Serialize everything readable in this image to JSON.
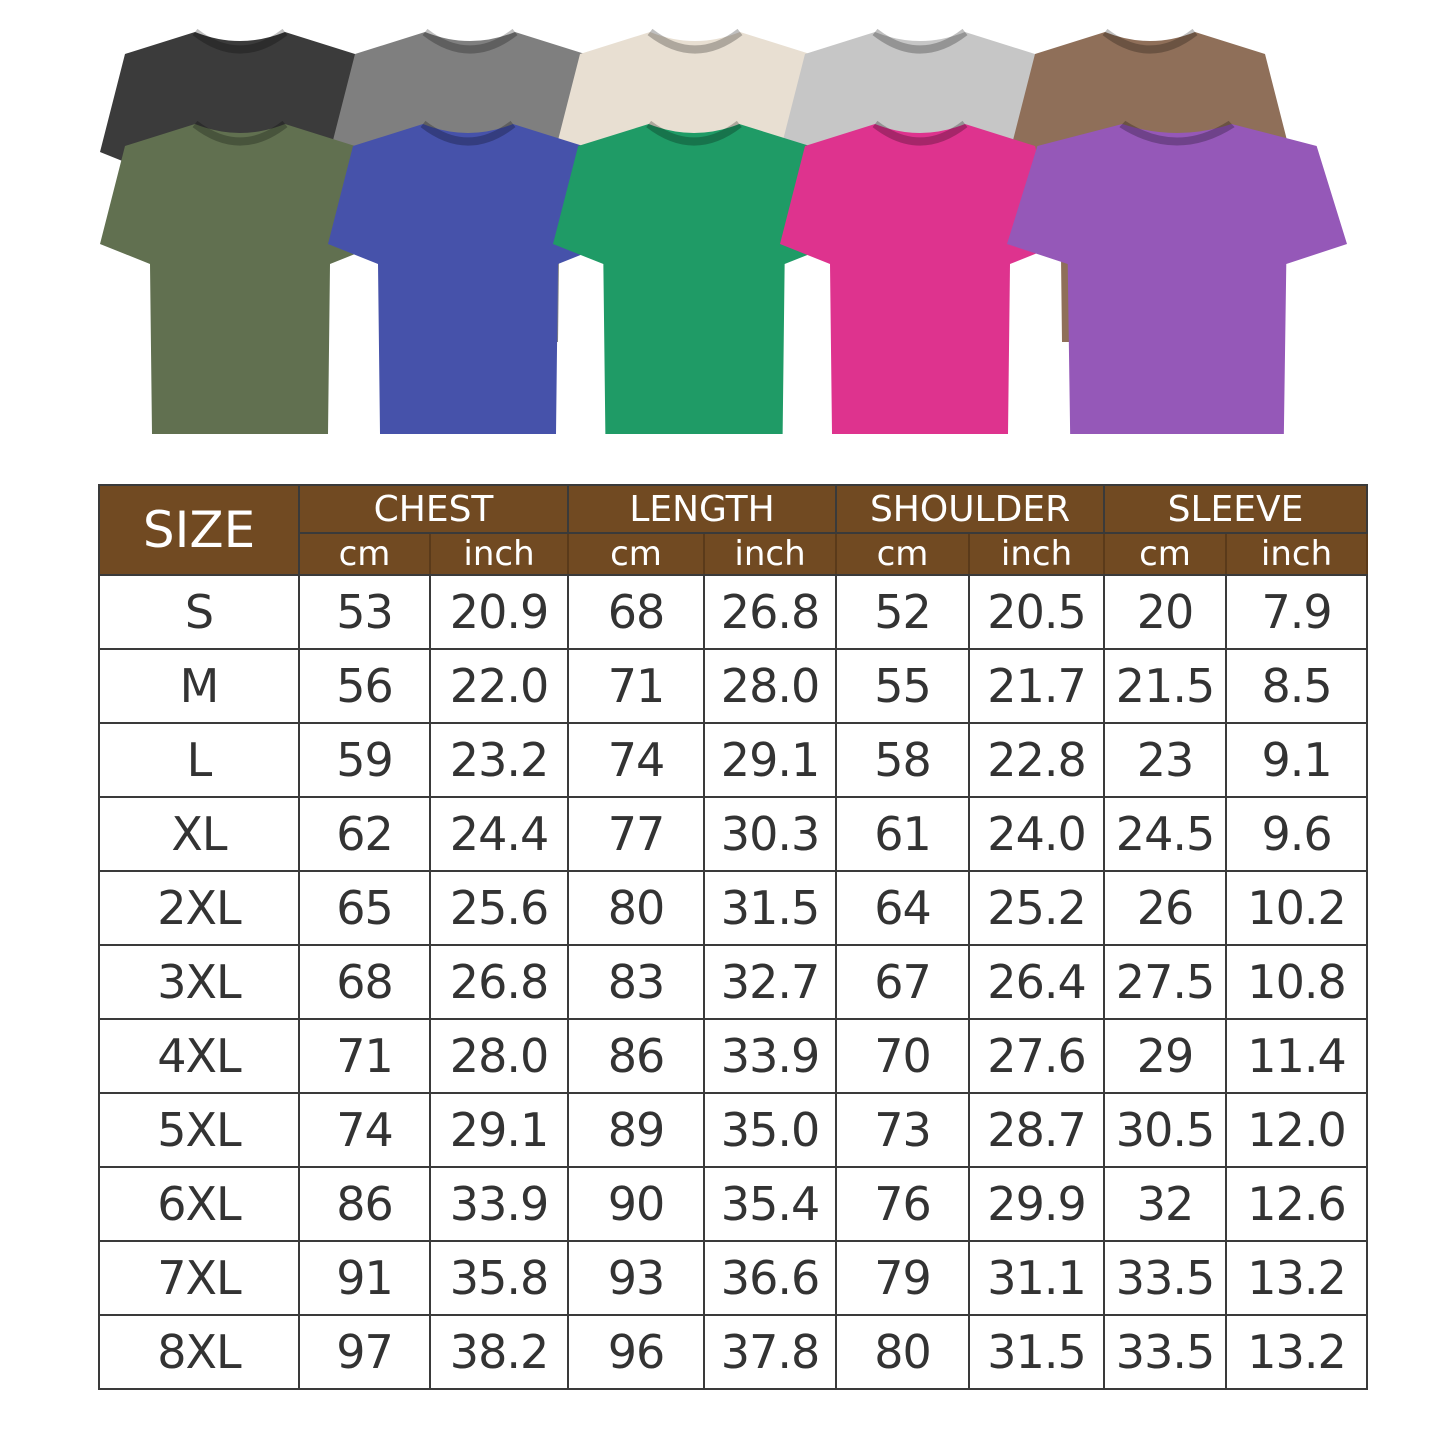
{
  "shirts": {
    "back_row": [
      {
        "color_name": "black",
        "color": "#3b3b3b"
      },
      {
        "color_name": "gray",
        "color": "#7f7f7f"
      },
      {
        "color_name": "cream",
        "color": "#e8dfd2"
      },
      {
        "color_name": "light-gray",
        "color": "#c6c6c6"
      },
      {
        "color_name": "brown",
        "color": "#8f6f59"
      }
    ],
    "front_row": [
      {
        "color_name": "olive",
        "color": "#617050"
      },
      {
        "color_name": "blue",
        "color": "#4652aa"
      },
      {
        "color_name": "green",
        "color": "#1f9b66"
      },
      {
        "color_name": "pink",
        "color": "#de338e"
      },
      {
        "color_name": "purple",
        "color": "#9558b8"
      }
    ]
  },
  "table": {
    "header_bg": "#714a22",
    "size_label": "SIZE",
    "groups": [
      "CHEST",
      "LENGTH",
      "SHOULDER",
      "SLEEVE"
    ],
    "units": [
      "cm",
      "inch"
    ],
    "rows": [
      [
        "S",
        "53",
        "20.9",
        "68",
        "26.8",
        "52",
        "20.5",
        "20",
        "7.9"
      ],
      [
        "M",
        "56",
        "22.0",
        "71",
        "28.0",
        "55",
        "21.7",
        "21.5",
        "8.5"
      ],
      [
        "L",
        "59",
        "23.2",
        "74",
        "29.1",
        "58",
        "22.8",
        "23",
        "9.1"
      ],
      [
        "XL",
        "62",
        "24.4",
        "77",
        "30.3",
        "61",
        "24.0",
        "24.5",
        "9.6"
      ],
      [
        "2XL",
        "65",
        "25.6",
        "80",
        "31.5",
        "64",
        "25.2",
        "26",
        "10.2"
      ],
      [
        "3XL",
        "68",
        "26.8",
        "83",
        "32.7",
        "67",
        "26.4",
        "27.5",
        "10.8"
      ],
      [
        "4XL",
        "71",
        "28.0",
        "86",
        "33.9",
        "70",
        "27.6",
        "29",
        "11.4"
      ],
      [
        "5XL",
        "74",
        "29.1",
        "89",
        "35.0",
        "73",
        "28.7",
        "30.5",
        "12.0"
      ],
      [
        "6XL",
        "86",
        "33.9",
        "90",
        "35.4",
        "76",
        "29.9",
        "32",
        "12.6"
      ],
      [
        "7XL",
        "91",
        "35.8",
        "93",
        "36.6",
        "79",
        "31.1",
        "33.5",
        "13.2"
      ],
      [
        "8XL",
        "97",
        "38.2",
        "96",
        "37.8",
        "80",
        "31.5",
        "33.5",
        "13.2"
      ]
    ]
  }
}
